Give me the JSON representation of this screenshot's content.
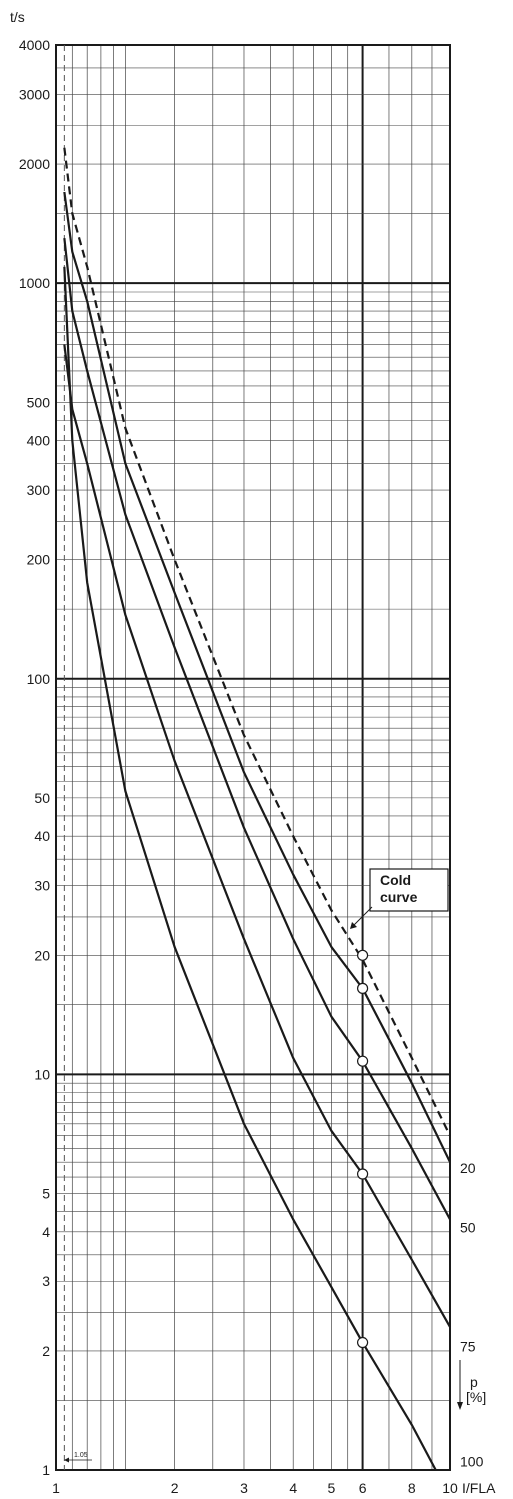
{
  "chart_data": {
    "type": "line",
    "x_scale": "log",
    "y_scale": "log",
    "xlim": [
      1,
      10
    ],
    "ylim": [
      1,
      4000
    ],
    "ylabel": "t/s",
    "xlabel": "I/FLA",
    "grid": true,
    "x_ticks": [
      {
        "v": 1,
        "label": "1"
      },
      {
        "v": 2,
        "label": "2"
      },
      {
        "v": 3,
        "label": "3"
      },
      {
        "v": 4,
        "label": "4"
      },
      {
        "v": 5,
        "label": "5"
      },
      {
        "v": 6,
        "label": "6"
      },
      {
        "v": 8,
        "label": "8"
      },
      {
        "v": 10,
        "label": "10"
      }
    ],
    "y_ticks": [
      {
        "v": 4000,
        "label": "4000"
      },
      {
        "v": 3000,
        "label": "3000"
      },
      {
        "v": 2000,
        "label": "2000"
      },
      {
        "v": 1000,
        "label": "1000"
      },
      {
        "v": 500,
        "label": "500"
      },
      {
        "v": 400,
        "label": "400"
      },
      {
        "v": 300,
        "label": "300"
      },
      {
        "v": 200,
        "label": "200"
      },
      {
        "v": 100,
        "label": "100"
      },
      {
        "v": 50,
        "label": "50"
      },
      {
        "v": 40,
        "label": "40"
      },
      {
        "v": 30,
        "label": "30"
      },
      {
        "v": 20,
        "label": "20"
      },
      {
        "v": 10,
        "label": "10"
      },
      {
        "v": 5,
        "label": "5"
      },
      {
        "v": 4,
        "label": "4"
      },
      {
        "v": 3,
        "label": "3"
      },
      {
        "v": 2,
        "label": "2"
      },
      {
        "v": 1,
        "label": "1"
      }
    ],
    "series": [
      {
        "name": "Cold curve",
        "style": "dashed",
        "points": [
          [
            1.05,
            2200
          ],
          [
            1.1,
            1500
          ],
          [
            1.2,
            1100
          ],
          [
            1.5,
            430
          ],
          [
            2,
            200
          ],
          [
            3,
            72
          ],
          [
            4,
            40
          ],
          [
            5,
            26
          ],
          [
            6,
            19.5
          ],
          [
            8,
            11
          ],
          [
            10,
            7
          ]
        ]
      },
      {
        "name": "20",
        "style": "solid",
        "points": [
          [
            1.05,
            1700
          ],
          [
            1.1,
            1200
          ],
          [
            1.2,
            900
          ],
          [
            1.5,
            350
          ],
          [
            2,
            165
          ],
          [
            3,
            58
          ],
          [
            4,
            32
          ],
          [
            5,
            21
          ],
          [
            6,
            16.5
          ],
          [
            8,
            9.5
          ],
          [
            10,
            6
          ]
        ]
      },
      {
        "name": "50",
        "style": "solid",
        "points": [
          [
            1.05,
            1300
          ],
          [
            1.1,
            850
          ],
          [
            1.2,
            600
          ],
          [
            1.5,
            260
          ],
          [
            2,
            120
          ],
          [
            3,
            42
          ],
          [
            4,
            22
          ],
          [
            5,
            14
          ],
          [
            6,
            10.8
          ],
          [
            8,
            6.5
          ],
          [
            10,
            4.3
          ]
        ]
      },
      {
        "name": "75",
        "style": "solid",
        "points": [
          [
            1.05,
            700
          ],
          [
            1.1,
            480
          ],
          [
            1.2,
            350
          ],
          [
            1.5,
            145
          ],
          [
            2,
            62
          ],
          [
            3,
            22
          ],
          [
            4,
            11
          ],
          [
            5,
            7.2
          ],
          [
            6,
            5.6
          ],
          [
            8,
            3.4
          ],
          [
            10,
            2.3
          ]
        ]
      },
      {
        "name": "100",
        "style": "solid",
        "points": [
          [
            1.05,
            1100
          ],
          [
            1.1,
            400
          ],
          [
            1.2,
            175
          ],
          [
            1.5,
            52
          ],
          [
            2,
            21
          ],
          [
            3,
            7.5
          ],
          [
            4,
            4.3
          ],
          [
            5,
            2.9
          ],
          [
            6,
            2.1
          ],
          [
            8,
            1.3
          ],
          [
            9.2,
            1
          ]
        ]
      }
    ],
    "markers": [
      {
        "x": 6,
        "y": 20
      },
      {
        "x": 6,
        "y": 16.5
      },
      {
        "x": 6,
        "y": 10.8
      },
      {
        "x": 6,
        "y": 5.6
      },
      {
        "x": 6,
        "y": 2.1
      }
    ],
    "curve_labels": [
      {
        "text": "20",
        "y": 5.8
      },
      {
        "text": "50",
        "y": 4.1
      },
      {
        "text": "75",
        "y": 2.05
      },
      {
        "text": "100",
        "y": 1.05
      }
    ],
    "annotations": {
      "cold_curve": {
        "line1": "Cold",
        "line2": "curve"
      },
      "threshold": {
        "x": 1.05,
        "label": "1.05"
      },
      "p_axis": {
        "symbol": "p",
        "unit": "[%]"
      }
    }
  },
  "colors": {
    "curve": "#1a1a1a",
    "grid_minor": "#444444",
    "grid_major": "#1a1a1a",
    "marker_fill": "#ffffff"
  }
}
